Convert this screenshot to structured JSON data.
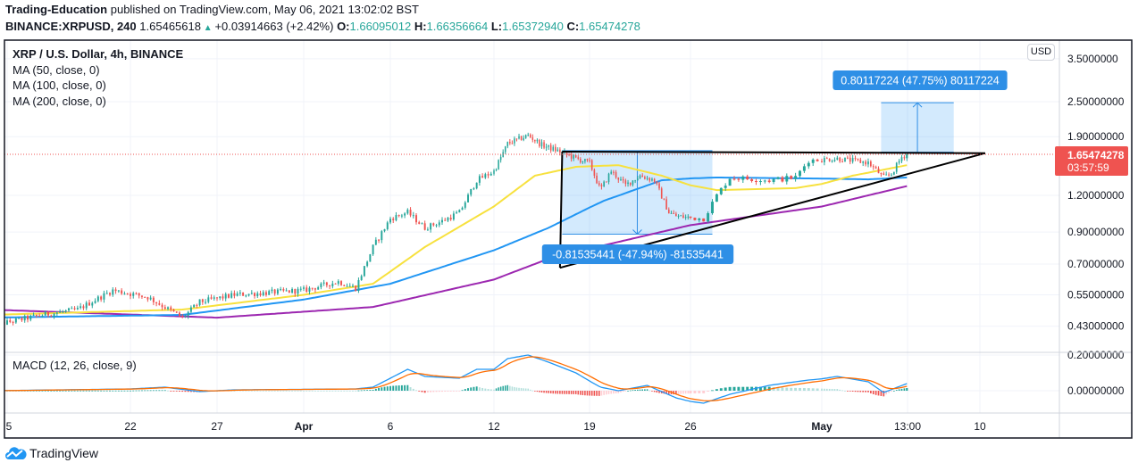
{
  "header": {
    "author": "Trading-Education",
    "published": " published on TradingView.com, May 06, 2021 13:02:02 BST",
    "symbol": "BINANCE:XRPUSD, 240",
    "last": "1.65465618",
    "change": "+0.03914663 (+2.42%)",
    "o_label": "O:",
    "o": "1.66095012",
    "h_label": "H:",
    "h": "1.66356664",
    "l_label": "L:",
    "l": "1.65372940",
    "c_label": "C:",
    "c": "1.65474278"
  },
  "legend": {
    "title": "XRP / U.S. Dollar, 4h, BINANCE",
    "ma50": "MA (50, close, 0)",
    "ma100": "MA (100, close, 0)",
    "ma200": "MA (200, close, 0)",
    "macd": "MACD (12, 26, close, 9)"
  },
  "axis": {
    "currency_button": "USD",
    "current_price": "1.65474278",
    "countdown": "03:57:59"
  },
  "branding": {
    "logo_text": "TradingView"
  },
  "colors": {
    "up": "#26a69a",
    "down": "#ef5350",
    "ma50": "#f7e13e",
    "ma100": "#2196f3",
    "ma200": "#9c27b0",
    "macd": "#2196f3",
    "signal": "#ff6d00",
    "measure": "#2e8fe6",
    "trendline": "#000000"
  },
  "chart_data": [
    {
      "type": "candlestick",
      "scale": "log",
      "interval": "4h",
      "price_ticks": [
        {
          "value": 3.5,
          "label": "3.5000000"
        },
        {
          "value": 2.5,
          "label": "2.50000000"
        },
        {
          "value": 1.9,
          "label": "1.90000000"
        },
        {
          "value": 1.2,
          "label": "1.20000000"
        },
        {
          "value": 0.9,
          "label": "0.90000000"
        },
        {
          "value": 0.7,
          "label": "0.70000000"
        },
        {
          "value": 0.55,
          "label": "0.55000000"
        },
        {
          "value": 0.43,
          "label": "0.43000000"
        }
      ],
      "time_ticks": [
        {
          "date": "2021-03-15T00:00",
          "label": "5"
        },
        {
          "date": "2021-03-22T00:00",
          "label": "22"
        },
        {
          "date": "2021-03-27T00:00",
          "label": "27"
        },
        {
          "date": "2021-04-01T00:00",
          "label": "Apr"
        },
        {
          "date": "2021-04-06T00:00",
          "label": "6"
        },
        {
          "date": "2021-04-12T00:00",
          "label": "12"
        },
        {
          "date": "2021-04-19T00:00",
          "label": "19"
        },
        {
          "date": "2021-04-26T00:00",
          "label": "26"
        },
        {
          "date": "2021-05-01T00:00",
          "label": "May"
        },
        {
          "date": "2021-05-06T13:00",
          "label": "13:00"
        },
        {
          "date": "2021-05-10T00:00",
          "label": "10"
        }
      ],
      "close_path": [
        [
          "2021-03-14T00:00",
          0.43
        ],
        [
          "2021-03-17T00:00",
          0.47
        ],
        [
          "2021-03-19T00:00",
          0.49
        ],
        [
          "2021-03-21T00:00",
          0.57
        ],
        [
          "2021-03-23T00:00",
          0.54
        ],
        [
          "2021-03-25T00:00",
          0.46
        ],
        [
          "2021-03-26T00:00",
          0.52
        ],
        [
          "2021-03-28T00:00",
          0.55
        ],
        [
          "2021-04-01T00:00",
          0.57
        ],
        [
          "2021-04-03T00:00",
          0.61
        ],
        [
          "2021-04-04T00:00",
          0.58
        ],
        [
          "2021-04-05T00:00",
          0.8
        ],
        [
          "2021-04-06T00:00",
          1.0
        ],
        [
          "2021-04-07T00:00",
          1.05
        ],
        [
          "2021-04-08T00:00",
          0.93
        ],
        [
          "2021-04-09T00:00",
          0.98
        ],
        [
          "2021-04-10T00:00",
          1.05
        ],
        [
          "2021-04-11T00:00",
          1.35
        ],
        [
          "2021-04-12T00:00",
          1.45
        ],
        [
          "2021-04-13T00:00",
          1.8
        ],
        [
          "2021-04-14T12:00",
          1.92
        ],
        [
          "2021-04-15T12:00",
          1.78
        ],
        [
          "2021-04-17T00:00",
          1.68
        ],
        [
          "2021-04-18T00:00",
          1.6
        ],
        [
          "2021-04-19T00:00",
          1.55
        ],
        [
          "2021-04-19T18:00",
          1.25
        ],
        [
          "2021-04-20T12:00",
          1.45
        ],
        [
          "2021-04-21T12:00",
          1.3
        ],
        [
          "2021-04-22T12:00",
          1.4
        ],
        [
          "2021-04-23T12:00",
          1.35
        ],
        [
          "2021-04-24T12:00",
          1.05
        ],
        [
          "2021-04-25T00:00",
          1.02
        ],
        [
          "2021-04-26T12:00",
          1.0
        ],
        [
          "2021-04-27T00:00",
          1.2
        ],
        [
          "2021-04-27T12:00",
          1.38
        ],
        [
          "2021-04-29T00:00",
          1.35
        ],
        [
          "2021-04-30T00:00",
          1.38
        ],
        [
          "2021-04-30T12:00",
          1.58
        ],
        [
          "2021-05-02T00:00",
          1.6
        ],
        [
          "2021-05-04T00:00",
          1.55
        ],
        [
          "2021-05-05T00:00",
          1.38
        ],
        [
          "2021-05-05T12:00",
          1.42
        ],
        [
          "2021-05-06T04:00",
          1.62
        ],
        [
          "2021-05-06T12:00",
          1.655
        ]
      ],
      "ma50": [
        [
          "2021-03-14T00:00",
          0.47
        ],
        [
          "2021-03-25T00:00",
          0.49
        ],
        [
          "2021-04-01T00:00",
          0.55
        ],
        [
          "2021-04-05T00:00",
          0.6
        ],
        [
          "2021-04-08T00:00",
          0.8
        ],
        [
          "2021-04-12T00:00",
          1.1
        ],
        [
          "2021-04-15T00:00",
          1.4
        ],
        [
          "2021-04-18T00:00",
          1.5
        ],
        [
          "2021-04-21T00:00",
          1.52
        ],
        [
          "2021-04-24T00:00",
          1.4
        ],
        [
          "2021-04-27T00:00",
          1.25
        ],
        [
          "2021-04-30T00:00",
          1.27
        ],
        [
          "2021-05-03T00:00",
          1.4
        ],
        [
          "2021-05-06T12:00",
          1.52
        ]
      ],
      "ma100": [
        [
          "2021-03-14T00:00",
          0.46
        ],
        [
          "2021-03-25T00:00",
          0.47
        ],
        [
          "2021-04-01T00:00",
          0.53
        ],
        [
          "2021-04-06T00:00",
          0.6
        ],
        [
          "2021-04-12T00:00",
          0.78
        ],
        [
          "2021-04-16T00:00",
          0.93
        ],
        [
          "2021-04-20T00:00",
          1.15
        ],
        [
          "2021-04-24T00:00",
          1.35
        ],
        [
          "2021-04-27T00:00",
          1.38
        ],
        [
          "2021-05-04T00:00",
          1.36
        ],
        [
          "2021-05-06T12:00",
          1.38
        ]
      ],
      "ma200": [
        [
          "2021-03-14T00:00",
          0.49
        ],
        [
          "2021-03-27T00:00",
          0.46
        ],
        [
          "2021-04-05T00:00",
          0.5
        ],
        [
          "2021-04-12T00:00",
          0.62
        ],
        [
          "2021-04-16T00:00",
          0.73
        ],
        [
          "2021-04-26T00:00",
          0.95
        ],
        [
          "2021-05-06T12:00",
          1.29
        ]
      ],
      "current_price": 1.65474278,
      "drawings": {
        "resistance": [
          [
            "2021-04-17T00:00",
            1.69
          ],
          [
            "2021-05-10T06:00",
            1.67
          ]
        ],
        "support": [
          [
            "2021-04-16T20:00",
            0.68
          ],
          [
            "2021-05-10T06:00",
            1.67
          ]
        ],
        "vertical": [
          [
            "2021-04-17T00:00",
            1.69
          ],
          [
            "2021-04-16T20:00",
            0.68
          ]
        ],
        "measure_down": {
          "from": "2021-04-17T00:00",
          "to": "2021-04-26T20:00",
          "top": 1.7,
          "bottom": 0.885,
          "label": "-0.81535441 (-47.94%) -81535441"
        },
        "measure_up": {
          "from": "2021-05-04T20:00",
          "to": "2021-05-08T18:00",
          "bottom": 1.68,
          "top": 2.48,
          "label": "0.80117224 (47.75%) 80117224"
        }
      }
    },
    {
      "type": "line",
      "title": "MACD (12, 26, close, 9)",
      "ticks": [
        {
          "value": 0.2,
          "label": "0.20000000"
        },
        {
          "value": 0,
          "label": "0.00000000"
        }
      ],
      "macd_path": [
        [
          "2021-03-14T00:00",
          0
        ],
        [
          "2021-03-22T00:00",
          0.01
        ],
        [
          "2021-03-24T00:00",
          0.02
        ],
        [
          "2021-03-26T00:00",
          -0.005
        ],
        [
          "2021-03-28T00:00",
          0.005
        ],
        [
          "2021-04-04T00:00",
          0.01
        ],
        [
          "2021-04-05T00:00",
          0.02
        ],
        [
          "2021-04-07T00:00",
          0.12
        ],
        [
          "2021-04-08T00:00",
          0.08
        ],
        [
          "2021-04-10T00:00",
          0.07
        ],
        [
          "2021-04-11T00:00",
          0.12
        ],
        [
          "2021-04-12T00:00",
          0.12
        ],
        [
          "2021-04-13T00:00",
          0.18
        ],
        [
          "2021-04-14T12:00",
          0.2
        ],
        [
          "2021-04-16T00:00",
          0.16
        ],
        [
          "2021-04-18T00:00",
          0.1
        ],
        [
          "2021-04-19T18:00",
          0.02
        ],
        [
          "2021-04-21T00:00",
          0.0
        ],
        [
          "2021-04-23T00:00",
          0.03
        ],
        [
          "2021-04-25T00:00",
          -0.04
        ],
        [
          "2021-04-26T12:00",
          -0.07
        ],
        [
          "2021-04-27T12:00",
          -0.02
        ],
        [
          "2021-04-29T00:00",
          0.03
        ],
        [
          "2021-04-30T12:00",
          0.06
        ],
        [
          "2021-05-02T00:00",
          0.08
        ],
        [
          "2021-05-04T00:00",
          0.05
        ],
        [
          "2021-05-05T00:00",
          -0.01
        ],
        [
          "2021-05-06T12:00",
          0.04
        ]
      ]
    }
  ]
}
